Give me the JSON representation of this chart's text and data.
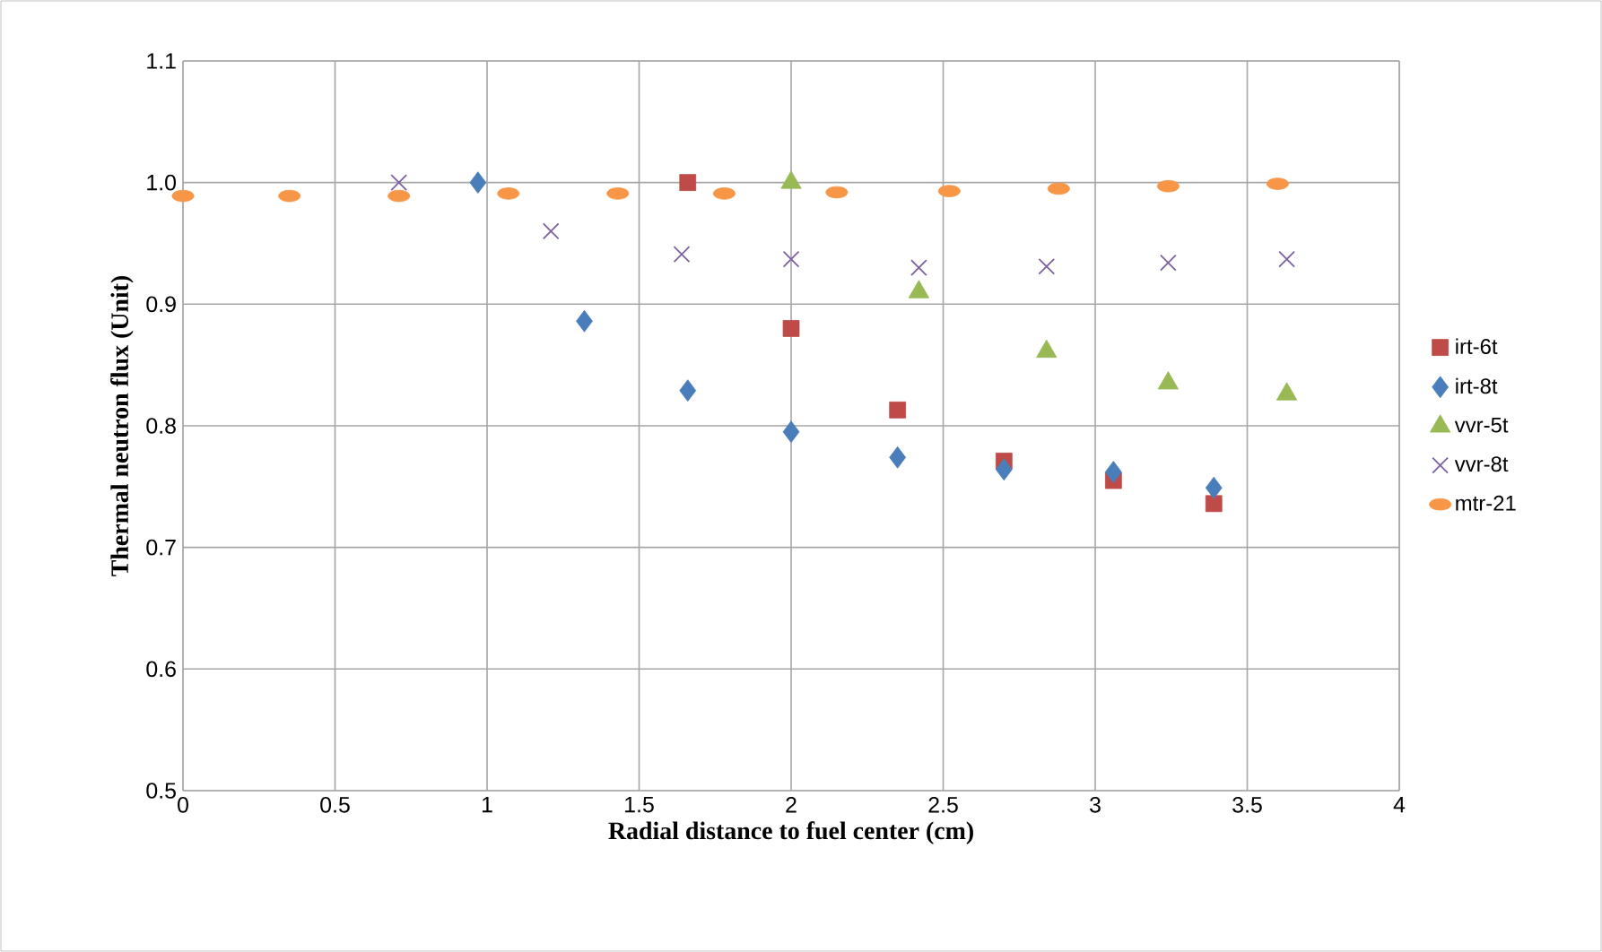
{
  "chart_data": {
    "type": "scatter",
    "xlabel": "Radial distance to fuel center (cm)",
    "ylabel": "Thermal neutron flux (Unit)",
    "xlim": [
      0,
      4
    ],
    "xticks": [
      0,
      0.5,
      1,
      1.5,
      2,
      2.5,
      3,
      3.5,
      4
    ],
    "ylim": [
      0.5,
      1.1
    ],
    "yticks": [
      0.5,
      0.6,
      0.7,
      0.8,
      0.9,
      {
        "value": 1,
        "label": "1.0"
      },
      1.1
    ],
    "grid": true,
    "legend": "right",
    "series": [
      {
        "name": "irt-6t",
        "color": "#be4b48",
        "marker": "square",
        "x": [
          1.66,
          2.0,
          2.35,
          2.7,
          3.06,
          3.39
        ],
        "values": [
          1.0,
          0.88,
          0.813,
          0.771,
          0.755,
          0.736
        ]
      },
      {
        "name": "irt-8t",
        "color": "#4a7ebb",
        "marker": "diamond",
        "x": [
          0.97,
          1.32,
          1.66,
          2.0,
          2.35,
          2.7,
          3.06,
          3.39
        ],
        "values": [
          1.0,
          0.886,
          0.829,
          0.795,
          0.774,
          0.764,
          0.762,
          0.749
        ]
      },
      {
        "name": "vvr-5t",
        "color": "#98b954",
        "marker": "triangle",
        "x": [
          2.0,
          2.42,
          2.84,
          3.24,
          3.63
        ],
        "values": [
          1.0,
          0.91,
          0.861,
          0.835,
          0.826
        ]
      },
      {
        "name": "vvr-8t",
        "color": "#7d60a0",
        "marker": "cross",
        "x": [
          0.71,
          1.21,
          1.64,
          2.0,
          2.42,
          2.84,
          3.24,
          3.63
        ],
        "values": [
          1.0,
          0.96,
          0.941,
          0.937,
          0.93,
          0.931,
          0.934,
          0.937
        ]
      },
      {
        "name": "mtr-21",
        "color": "#f79646",
        "marker": "circle",
        "x": [
          0,
          0.35,
          0.71,
          1.07,
          1.43,
          1.78,
          2.15,
          2.52,
          2.88,
          3.24,
          3.6
        ],
        "values": [
          0.989,
          0.989,
          0.989,
          0.991,
          0.991,
          0.991,
          0.992,
          0.993,
          0.995,
          0.997,
          0.999
        ]
      }
    ]
  }
}
